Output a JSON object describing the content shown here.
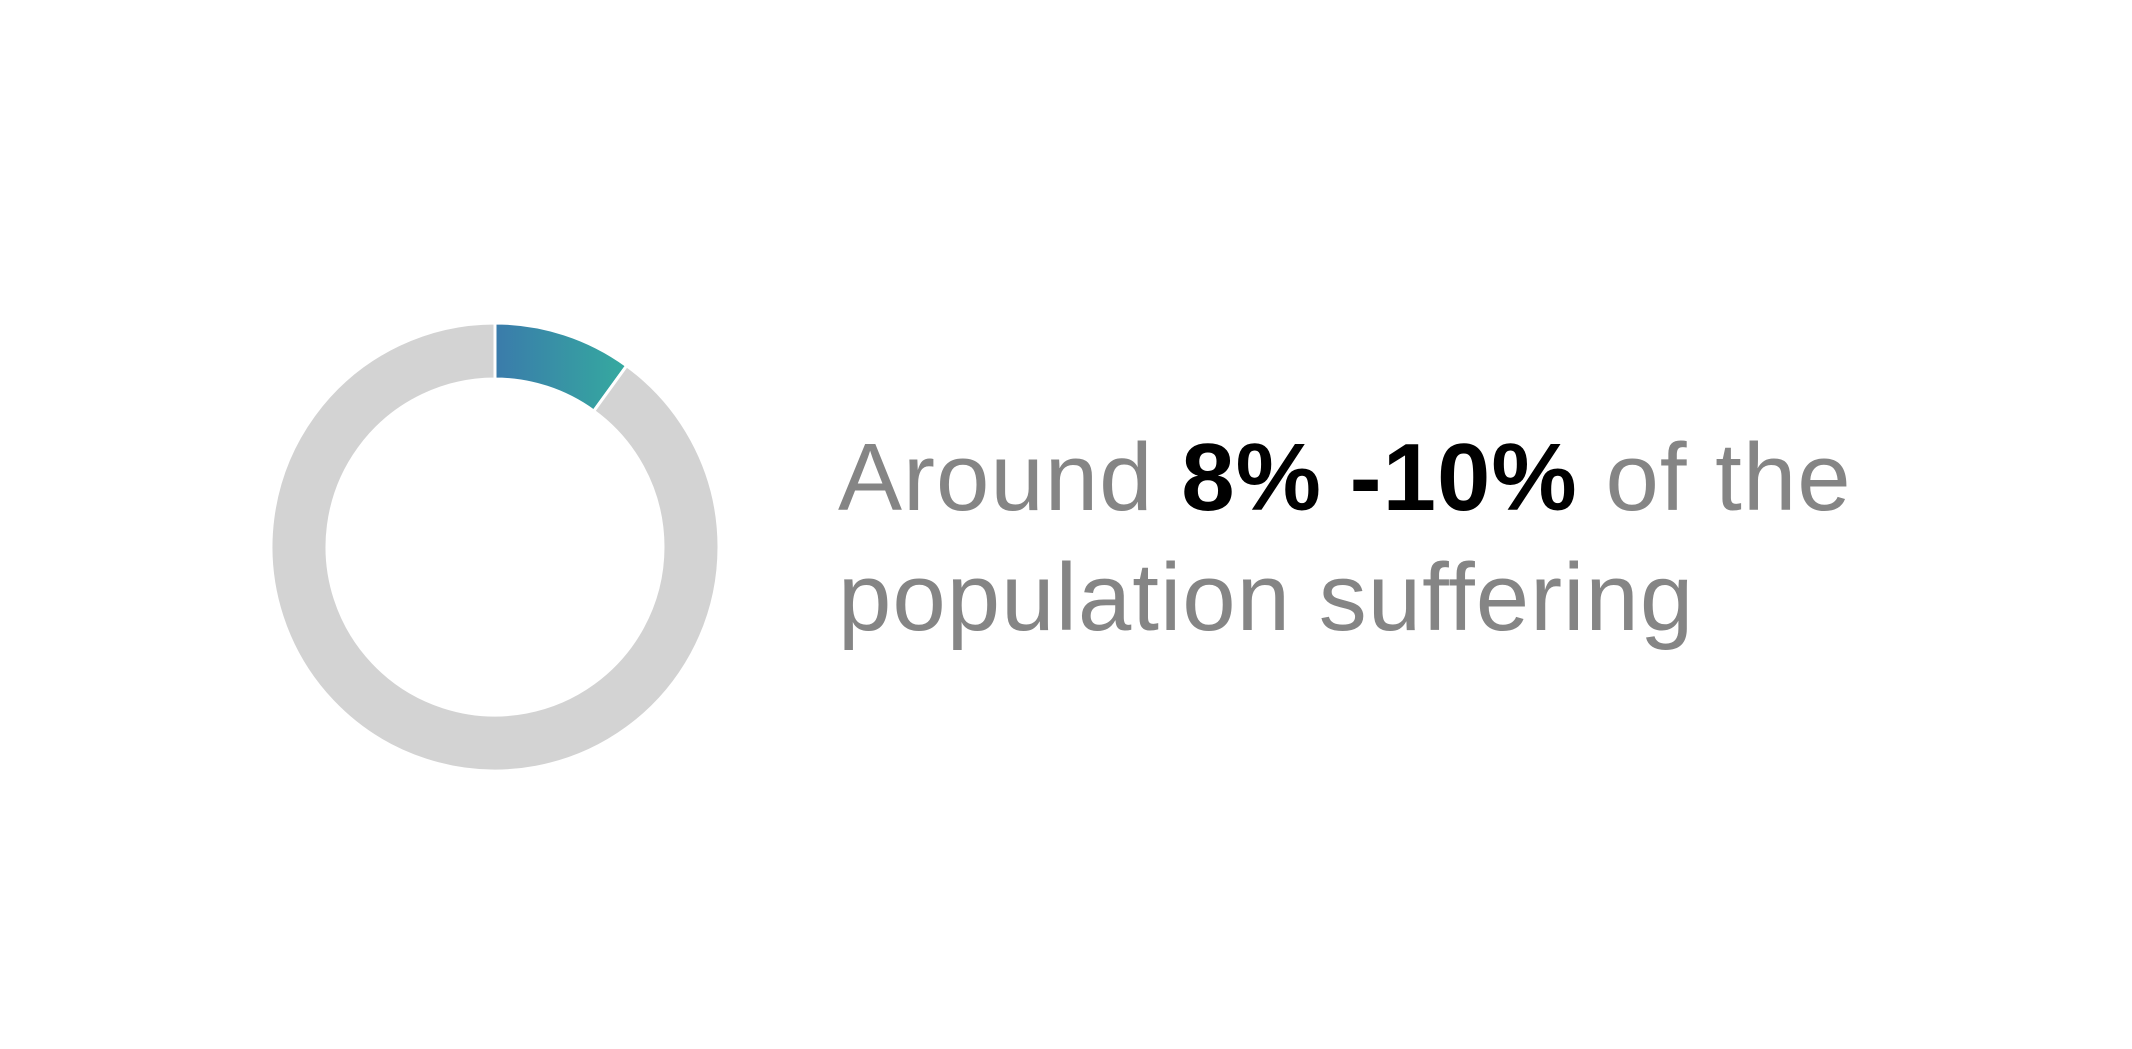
{
  "chart_data": {
    "type": "pie",
    "donut": true,
    "values": [
      10,
      90
    ],
    "slice_colors": [
      "gradient:#3a7bab-#35aa9f",
      "#d3d3d3"
    ],
    "start_angle_deg": 0,
    "separator_color": "#ffffff"
  },
  "caption": {
    "prefix": "Around ",
    "highlight": "8% -10%",
    "suffix": " of the population suffering"
  },
  "colors": {
    "gradient_start": "#3a7bab",
    "gradient_end": "#35aa9f",
    "remainder": "#d3d3d3",
    "caption_text": "#858585",
    "highlight_text": "#000000"
  }
}
